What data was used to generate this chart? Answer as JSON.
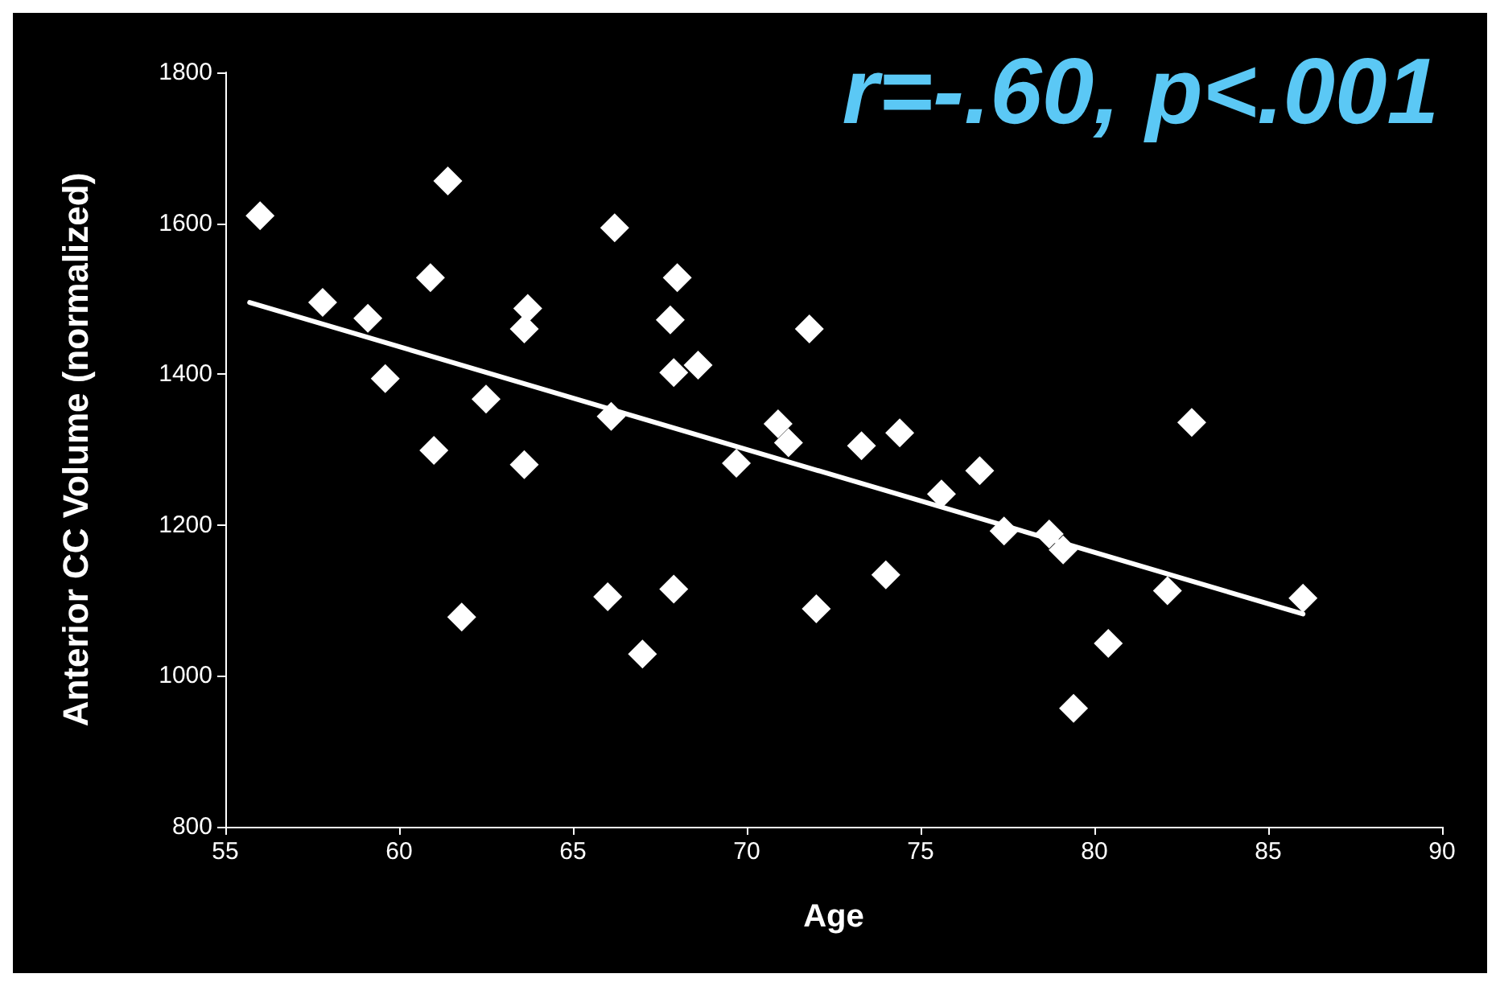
{
  "chart_data": {
    "type": "scatter",
    "xlabel": "Age",
    "ylabel": "Anterior CC Volume (normalized)",
    "annotations": [
      "r=-.60, p<.001"
    ],
    "xlim": [
      55,
      90
    ],
    "xticks": [
      55,
      60,
      65,
      70,
      75,
      80,
      85,
      90
    ],
    "ylim": [
      800,
      1800
    ],
    "yticks": [
      800,
      1000,
      1200,
      1400,
      1600,
      1800
    ],
    "grid": false,
    "marker": "diamond",
    "series": [
      {
        "color": "#ffffff",
        "x": [
          56.0,
          57.8,
          59.1,
          59.6,
          60.9,
          61.0,
          61.4,
          61.8,
          62.5,
          63.6,
          63.7,
          63.6,
          66.0,
          66.1,
          66.2,
          67.0,
          67.8,
          68.0,
          67.9,
          67.9,
          68.6,
          69.7,
          70.9,
          71.2,
          71.8,
          72.0,
          73.3,
          74.0,
          74.4,
          75.6,
          76.7,
          77.4,
          78.7,
          79.1,
          79.4,
          80.4,
          82.1,
          82.8,
          86.0
        ],
        "values": [
          1610,
          1495,
          1474,
          1394,
          1528,
          1299,
          1656,
          1078,
          1367,
          1460,
          1487,
          1280,
          1105,
          1344,
          1594,
          1029,
          1472,
          1528,
          1402,
          1115,
          1412,
          1282,
          1334,
          1309,
          1460,
          1089,
          1305,
          1134,
          1322,
          1241,
          1272,
          1192,
          1188,
          1167,
          957,
          1043,
          1113,
          1336,
          1103
        ]
      },
      {
        "type": "line",
        "color": "#ffffff",
        "marker": "none",
        "x": [
          55.7,
          86.0
        ],
        "values": [
          1495,
          1082
        ]
      }
    ]
  }
}
